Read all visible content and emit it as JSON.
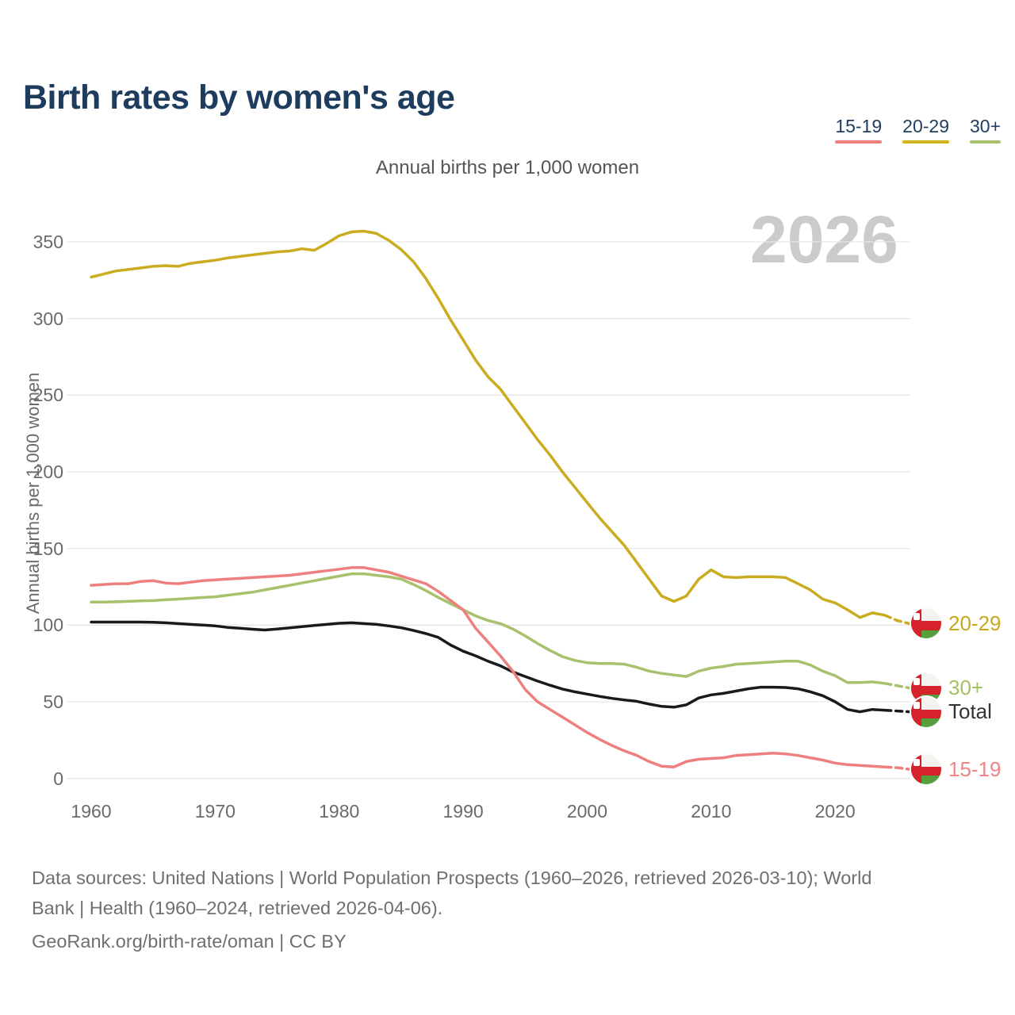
{
  "header": {
    "title": "Birth rates by women's age"
  },
  "subtitle": "Annual births per 1,000 women",
  "watermark_year": "2026",
  "legend": {
    "items": [
      {
        "label": "15-19",
        "color": "#ee7f7f"
      },
      {
        "label": "20-29",
        "color": "#d2b41c"
      },
      {
        "label": "30+",
        "color": "#a7c16c"
      }
    ]
  },
  "y_axis": {
    "title": "Annual births per 1,000 women",
    "ticks": [
      0,
      50,
      100,
      150,
      200,
      250,
      300,
      350
    ]
  },
  "x_axis": {
    "ticks": [
      1960,
      1970,
      1980,
      1990,
      2000,
      2010,
      2020
    ]
  },
  "end_labels": [
    {
      "series": "20-29",
      "label": "20-29",
      "color": "#c9a81d"
    },
    {
      "series": "30+",
      "label": "30+",
      "color": "#a4c063"
    },
    {
      "series": "Total",
      "label": "Total",
      "color": "#333333"
    },
    {
      "series": "15-19",
      "label": "15-19",
      "color": "#ef8585"
    }
  ],
  "flag_colors": {
    "white": "#f4f3ef",
    "red": "#d6222b",
    "green": "#55a03c"
  },
  "footer": {
    "sources_line1": "Data sources: United Nations | World Population Prospects (1960–2026, retrieved 2026-03-10); World",
    "sources_line2": "Bank | Health (1960–2024, retrieved 2026-04-06).",
    "georank_line": "GeoRank.org/birth-rate/oman | CC BY"
  },
  "chart_data": {
    "type": "line",
    "title": "Birth rates by women's age",
    "subtitle": "Annual births per 1,000 women",
    "ylabel": "Annual births per 1,000 women",
    "ylim": [
      0,
      350
    ],
    "grid": "horizontal",
    "legend_position": "top-right",
    "solid_until_year": 2024,
    "projection_end_year": 2026,
    "x": [
      1960,
      1961,
      1962,
      1963,
      1964,
      1965,
      1966,
      1967,
      1968,
      1969,
      1970,
      1971,
      1972,
      1973,
      1974,
      1975,
      1976,
      1977,
      1978,
      1979,
      1980,
      1981,
      1982,
      1983,
      1984,
      1985,
      1986,
      1987,
      1988,
      1989,
      1990,
      1991,
      1992,
      1993,
      1994,
      1995,
      1996,
      1997,
      1998,
      1999,
      2000,
      2001,
      2002,
      2003,
      2004,
      2005,
      2006,
      2007,
      2008,
      2009,
      2010,
      2011,
      2012,
      2013,
      2014,
      2015,
      2016,
      2017,
      2018,
      2019,
      2020,
      2021,
      2022,
      2023,
      2024,
      2025,
      2026
    ],
    "series": [
      {
        "name": "20-29",
        "color": "#c9ac20",
        "values": [
          327,
          329,
          331,
          332,
          333,
          334,
          334.5,
          334,
          336,
          337,
          338,
          339.5,
          340.5,
          341.5,
          342.5,
          343.5,
          344,
          345.5,
          344.5,
          349,
          354,
          356.5,
          357,
          355.5,
          351,
          345,
          337,
          326,
          313,
          299,
          286,
          273,
          262,
          254,
          243,
          232,
          221,
          211,
          200,
          190,
          180,
          170,
          161,
          152,
          141,
          130,
          119,
          115.5,
          119,
          130,
          136,
          131.5,
          131,
          131.5,
          131.5,
          131.5,
          131,
          127,
          123,
          117,
          114.5,
          110,
          105,
          108,
          106.5,
          103,
          101
        ]
      },
      {
        "name": "30+",
        "color": "#a7c16c",
        "values": [
          115,
          115,
          115.2,
          115.5,
          115.8,
          116,
          116.5,
          117,
          117.5,
          118,
          118.5,
          119.5,
          120.5,
          121.5,
          123,
          124.5,
          126,
          127.5,
          129,
          130.5,
          132,
          133.5,
          133.5,
          132.5,
          131.5,
          130,
          126.5,
          122.5,
          118,
          114,
          110,
          106,
          103,
          101,
          97.5,
          93,
          88,
          83.5,
          79.5,
          77,
          75.5,
          75,
          75,
          74.5,
          72.5,
          70,
          68.5,
          67.5,
          66.5,
          70,
          72,
          73,
          74.5,
          75,
          75.5,
          76,
          76.5,
          76.5,
          74,
          70,
          67,
          62.5,
          62.5,
          63,
          62,
          60.5,
          59
        ]
      },
      {
        "name": "Total",
        "color": "#1a1a1a",
        "values": [
          102,
          102,
          102,
          102,
          102,
          101.8,
          101.5,
          101,
          100.5,
          100,
          99.5,
          98.5,
          98,
          97.3,
          96.8,
          97.5,
          98.2,
          99,
          99.8,
          100.5,
          101.2,
          101.5,
          101,
          100.5,
          99.5,
          98.3,
          96.5,
          94.5,
          92,
          87,
          83,
          80,
          76.5,
          73.5,
          69.5,
          66.5,
          63.5,
          60.8,
          58.3,
          56.5,
          55,
          53.5,
          52.2,
          51.2,
          50.3,
          48.5,
          47,
          46.5,
          48,
          52.5,
          54.5,
          55.5,
          57,
          58.5,
          59.5,
          59.5,
          59.3,
          58.5,
          56.5,
          54,
          50,
          45,
          43.5,
          45,
          44.5,
          44,
          43.5
        ]
      },
      {
        "name": "15-19",
        "color": "#ee7f7f",
        "values": [
          126,
          126.5,
          127,
          127,
          128.5,
          129,
          127.5,
          127,
          128,
          129,
          129.5,
          130,
          130.5,
          131,
          131.5,
          132,
          132.5,
          133.5,
          134.5,
          135.5,
          136.5,
          137.5,
          137.5,
          136,
          134.5,
          132,
          129.5,
          127,
          122,
          116,
          110,
          98,
          89,
          80,
          70,
          58,
          50,
          45,
          40,
          35,
          30,
          25.5,
          21.5,
          18,
          15,
          11,
          8,
          7.5,
          11,
          12.5,
          13,
          13.5,
          15,
          15.5,
          16,
          16.5,
          16,
          15,
          13.5,
          12,
          10,
          9,
          8.5,
          8,
          7.5,
          7,
          6
        ]
      }
    ]
  }
}
